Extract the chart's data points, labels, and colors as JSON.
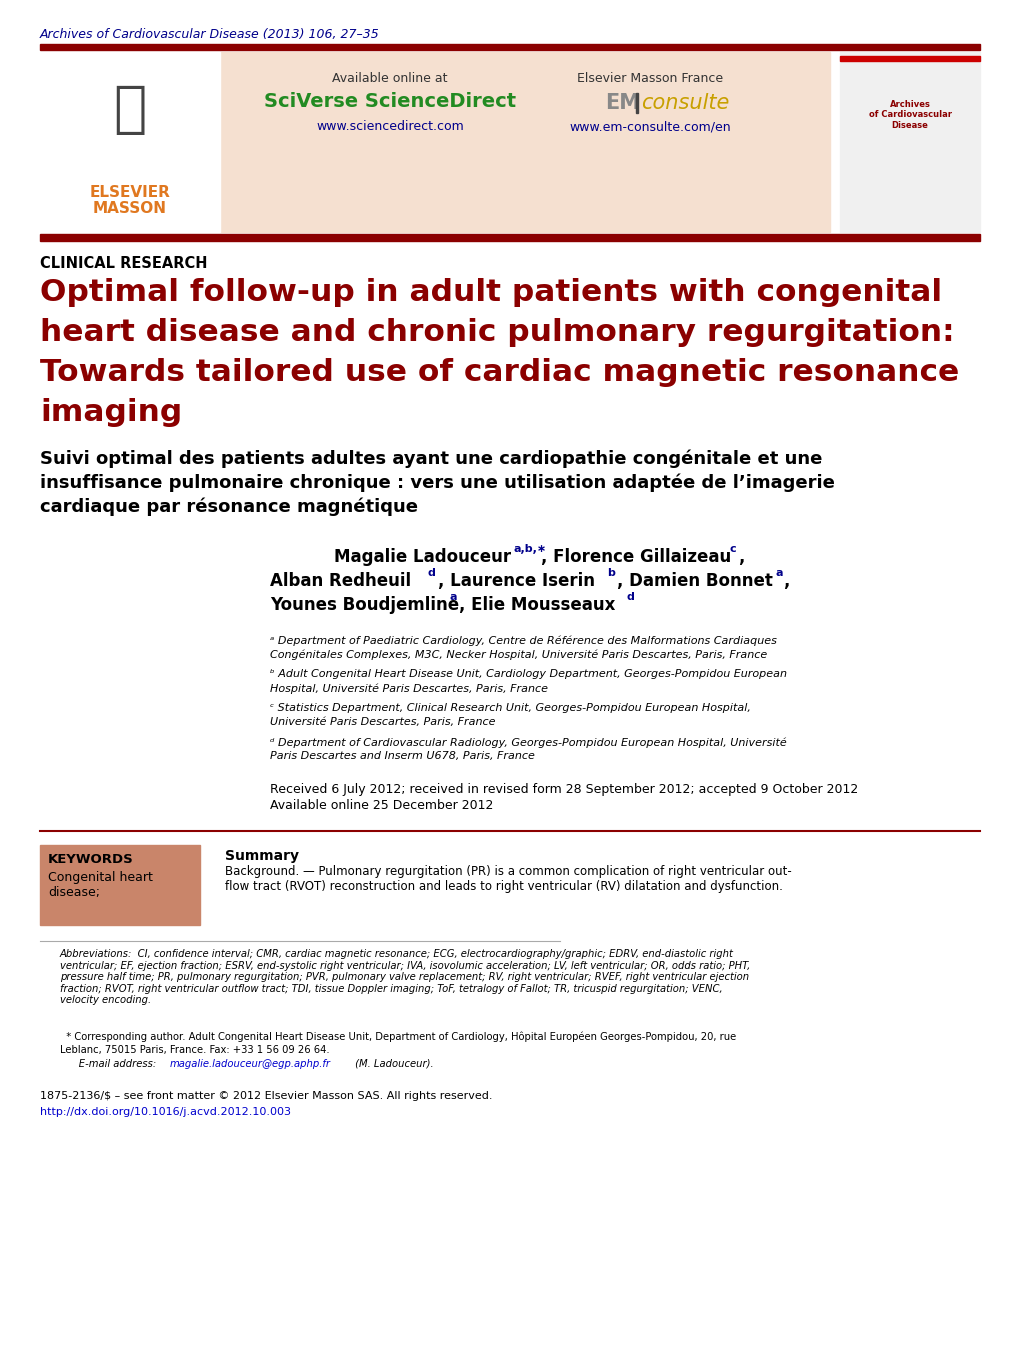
{
  "page_bg": "#ffffff",
  "top_journal_text": "Archives of Cardiovascular Disease (2013) 106, 27–35",
  "top_journal_color": "#00008b",
  "header_bg": "#f5e0d0",
  "elsevier_color": "#e07820",
  "sciverse_color": "#228b22",
  "em_color": "#888888",
  "consulte_color": "#c8a000",
  "url_color": "#00008b",
  "section_label": "CLINICAL RESEARCH",
  "title_lines": [
    "Optimal follow-up in adult patients with congenital",
    "heart disease and chronic pulmonary regurgitation:",
    "Towards tailored use of cardiac magnetic resonance",
    "imaging"
  ],
  "title_color": "#8b0000",
  "subtitle_lines": [
    "Suivi optimal des patients adultes ayant une cardiopathie congénitale et une",
    "insuffisance pulmonaire chronique : vers une utilisation adaptée de l’imagerie",
    "cardiaque par résonance magnétique"
  ],
  "sup_color": "#00008b",
  "keywords_bg": "#c9856a",
  "red_line_color": "#8b0000",
  "divider_color": "#8b0000",
  "footer_url_color": "#0000cd",
  "abbrev_text": "Abbreviations:  CI, confidence interval; CMR, cardiac magnetic resonance; ECG, electrocardiography/graphic; EDRV, end-diastolic right\nventricular; EF, ejection fraction; ESRV, end-systolic right ventricular; IVA, isovolumic acceleration; LV, left ventricular; OR, odds ratio; PHT,\npressure half time; PR, pulmonary regurgitation; PVR, pulmonary valve replacement; RV, right ventricular; RVEF, right ventricular ejection\nfraction; RVOT, right ventricular outflow tract; TDI, tissue Doppler imaging; ToF, tetralogy of Fallot; TR, tricuspid regurgitation; VENC,\nvelocity encoding.",
  "corresponding_line1": "  * Corresponding author. Adult Congenital Heart Disease Unit, Department of Cardiology, Hôpital Européen Georges-Pompidou, 20, rue",
  "corresponding_line2": "Leblanc, 75015 Paris, France. Fax: +33 1 56 09 26 64.",
  "corresponding_line3": "      E-mail address: magalie.ladouceur@egp.aphp.fr (M. Ladouceur).",
  "email_url": "magalie.ladouceur@egp.aphp.fr",
  "footer_line1": "1875-2136/$ – see front matter © 2012 Elsevier Masson SAS. All rights reserved.",
  "footer_line2": "http://dx.doi.org/10.1016/j.acvd.2012.10.003"
}
